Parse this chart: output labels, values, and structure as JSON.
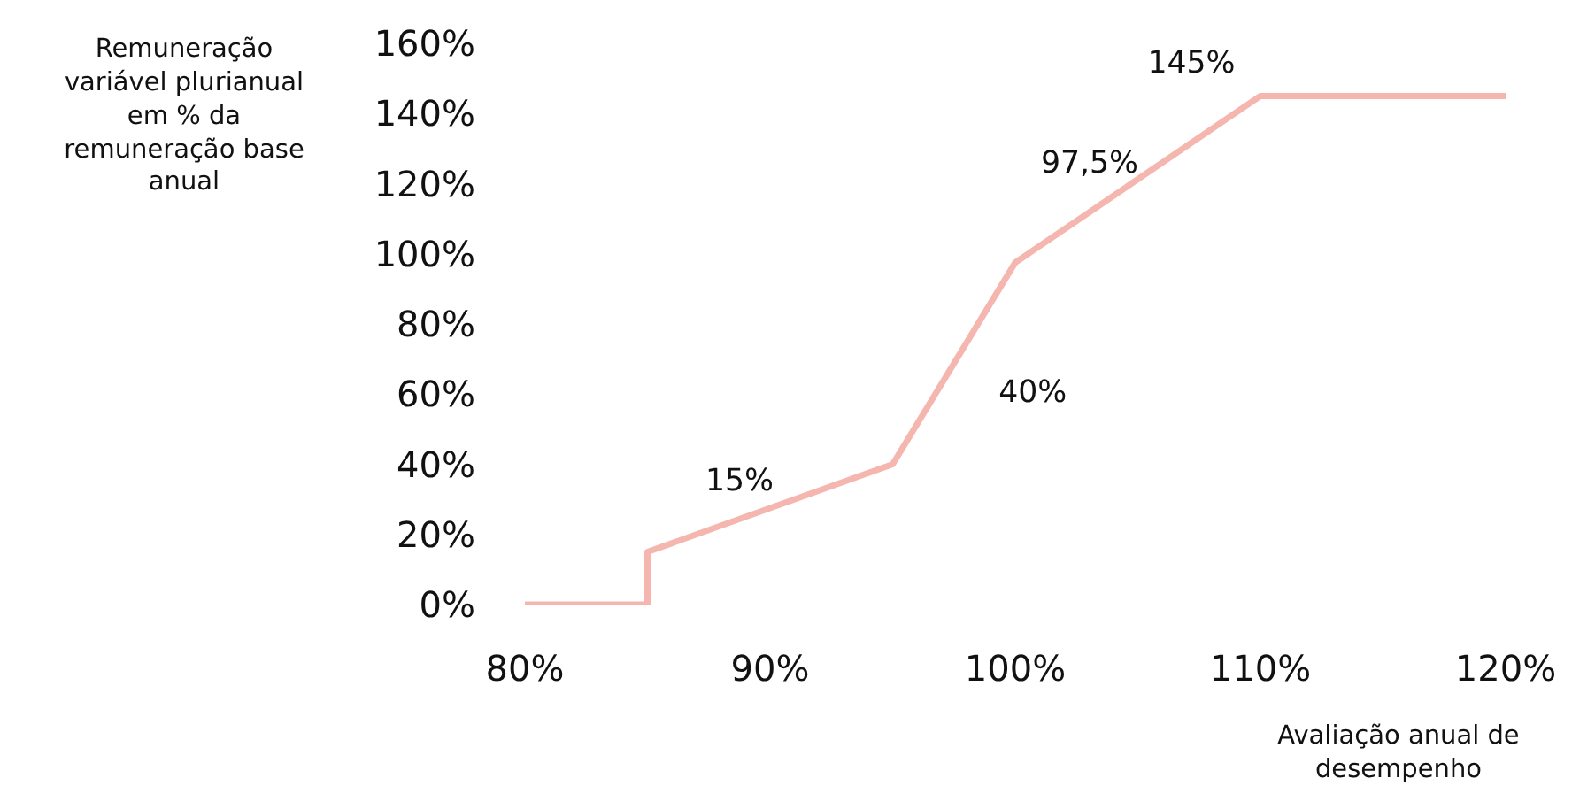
{
  "chart_data": {
    "type": "line",
    "ylabel": "Remuneração\nvariável plurianual\nem % da\nremuneração base\nanual",
    "xlabel": "Avaliação anual de\ndesempenho",
    "x": [
      80,
      85,
      85,
      95,
      100,
      110,
      120
    ],
    "series": [
      {
        "color": "#f4b6ae",
        "values": [
          0,
          0,
          15,
          40,
          97.5,
          145,
          145
        ]
      }
    ],
    "xlim": [
      80,
      120
    ],
    "ylim": [
      0,
      160
    ],
    "xticks": [
      {
        "value": 80,
        "label": "80%"
      },
      {
        "value": 90,
        "label": "90%"
      },
      {
        "value": 100,
        "label": "100%"
      },
      {
        "value": 110,
        "label": "110%"
      },
      {
        "value": 120,
        "label": "120%"
      }
    ],
    "yticks": [
      {
        "value": 0,
        "label": "0%"
      },
      {
        "value": 20,
        "label": "20%"
      },
      {
        "value": 40,
        "label": "40%"
      },
      {
        "value": 60,
        "label": "60%"
      },
      {
        "value": 80,
        "label": "80%"
      },
      {
        "value": 100,
        "label": "100%"
      },
      {
        "value": 120,
        "label": "120%"
      },
      {
        "value": 140,
        "label": "140%"
      },
      {
        "value": 160,
        "label": "160%"
      }
    ],
    "annotations": [
      {
        "text": "15%",
        "x": 85,
        "y": 15
      },
      "40%",
      {
        "text": "97,5%",
        "x": 100,
        "y": 97.5
      },
      {
        "text": "145%",
        "x": 110,
        "y": 145
      }
    ],
    "grid": false,
    "marker": "none",
    "line_style": "solid"
  }
}
